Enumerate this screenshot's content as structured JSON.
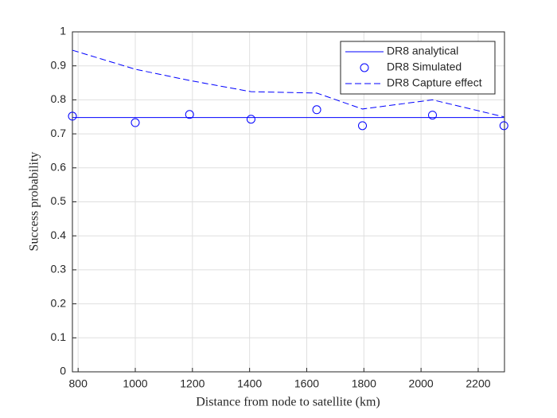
{
  "chart_data": {
    "type": "line",
    "xlabel": "Distance from node to satellite (km)",
    "ylabel": "Success probability",
    "x": [
      780,
      1000,
      1190,
      1405,
      1635,
      1795,
      2040,
      2290
    ],
    "series": [
      {
        "name": "DR8 analytical",
        "color": "#0000ff",
        "style": "solid",
        "values": [
          0.748,
          0.748,
          0.748,
          0.748,
          0.748,
          0.748,
          0.748,
          0.748
        ]
      },
      {
        "name": "DR8 Simulated",
        "color": "#0000ff",
        "style": "marker",
        "values": [
          0.752,
          0.733,
          0.757,
          0.743,
          0.771,
          0.724,
          0.755,
          0.724
        ]
      },
      {
        "name": "DR8 Capture effect",
        "color": "#0000ff",
        "style": "dashed",
        "values": [
          0.946,
          0.89,
          0.857,
          0.824,
          0.82,
          0.773,
          0.8,
          0.75
        ]
      }
    ],
    "xlim": [
      780,
      2292
    ],
    "ylim": [
      0,
      1
    ],
    "xticks": [
      800,
      1000,
      1200,
      1400,
      1600,
      1800,
      2000,
      2200
    ],
    "yticks": [
      0,
      0.1,
      0.2,
      0.3,
      0.4,
      0.5,
      0.6,
      0.7,
      0.8,
      0.9,
      1
    ],
    "grid": true,
    "legend": "northeast"
  }
}
